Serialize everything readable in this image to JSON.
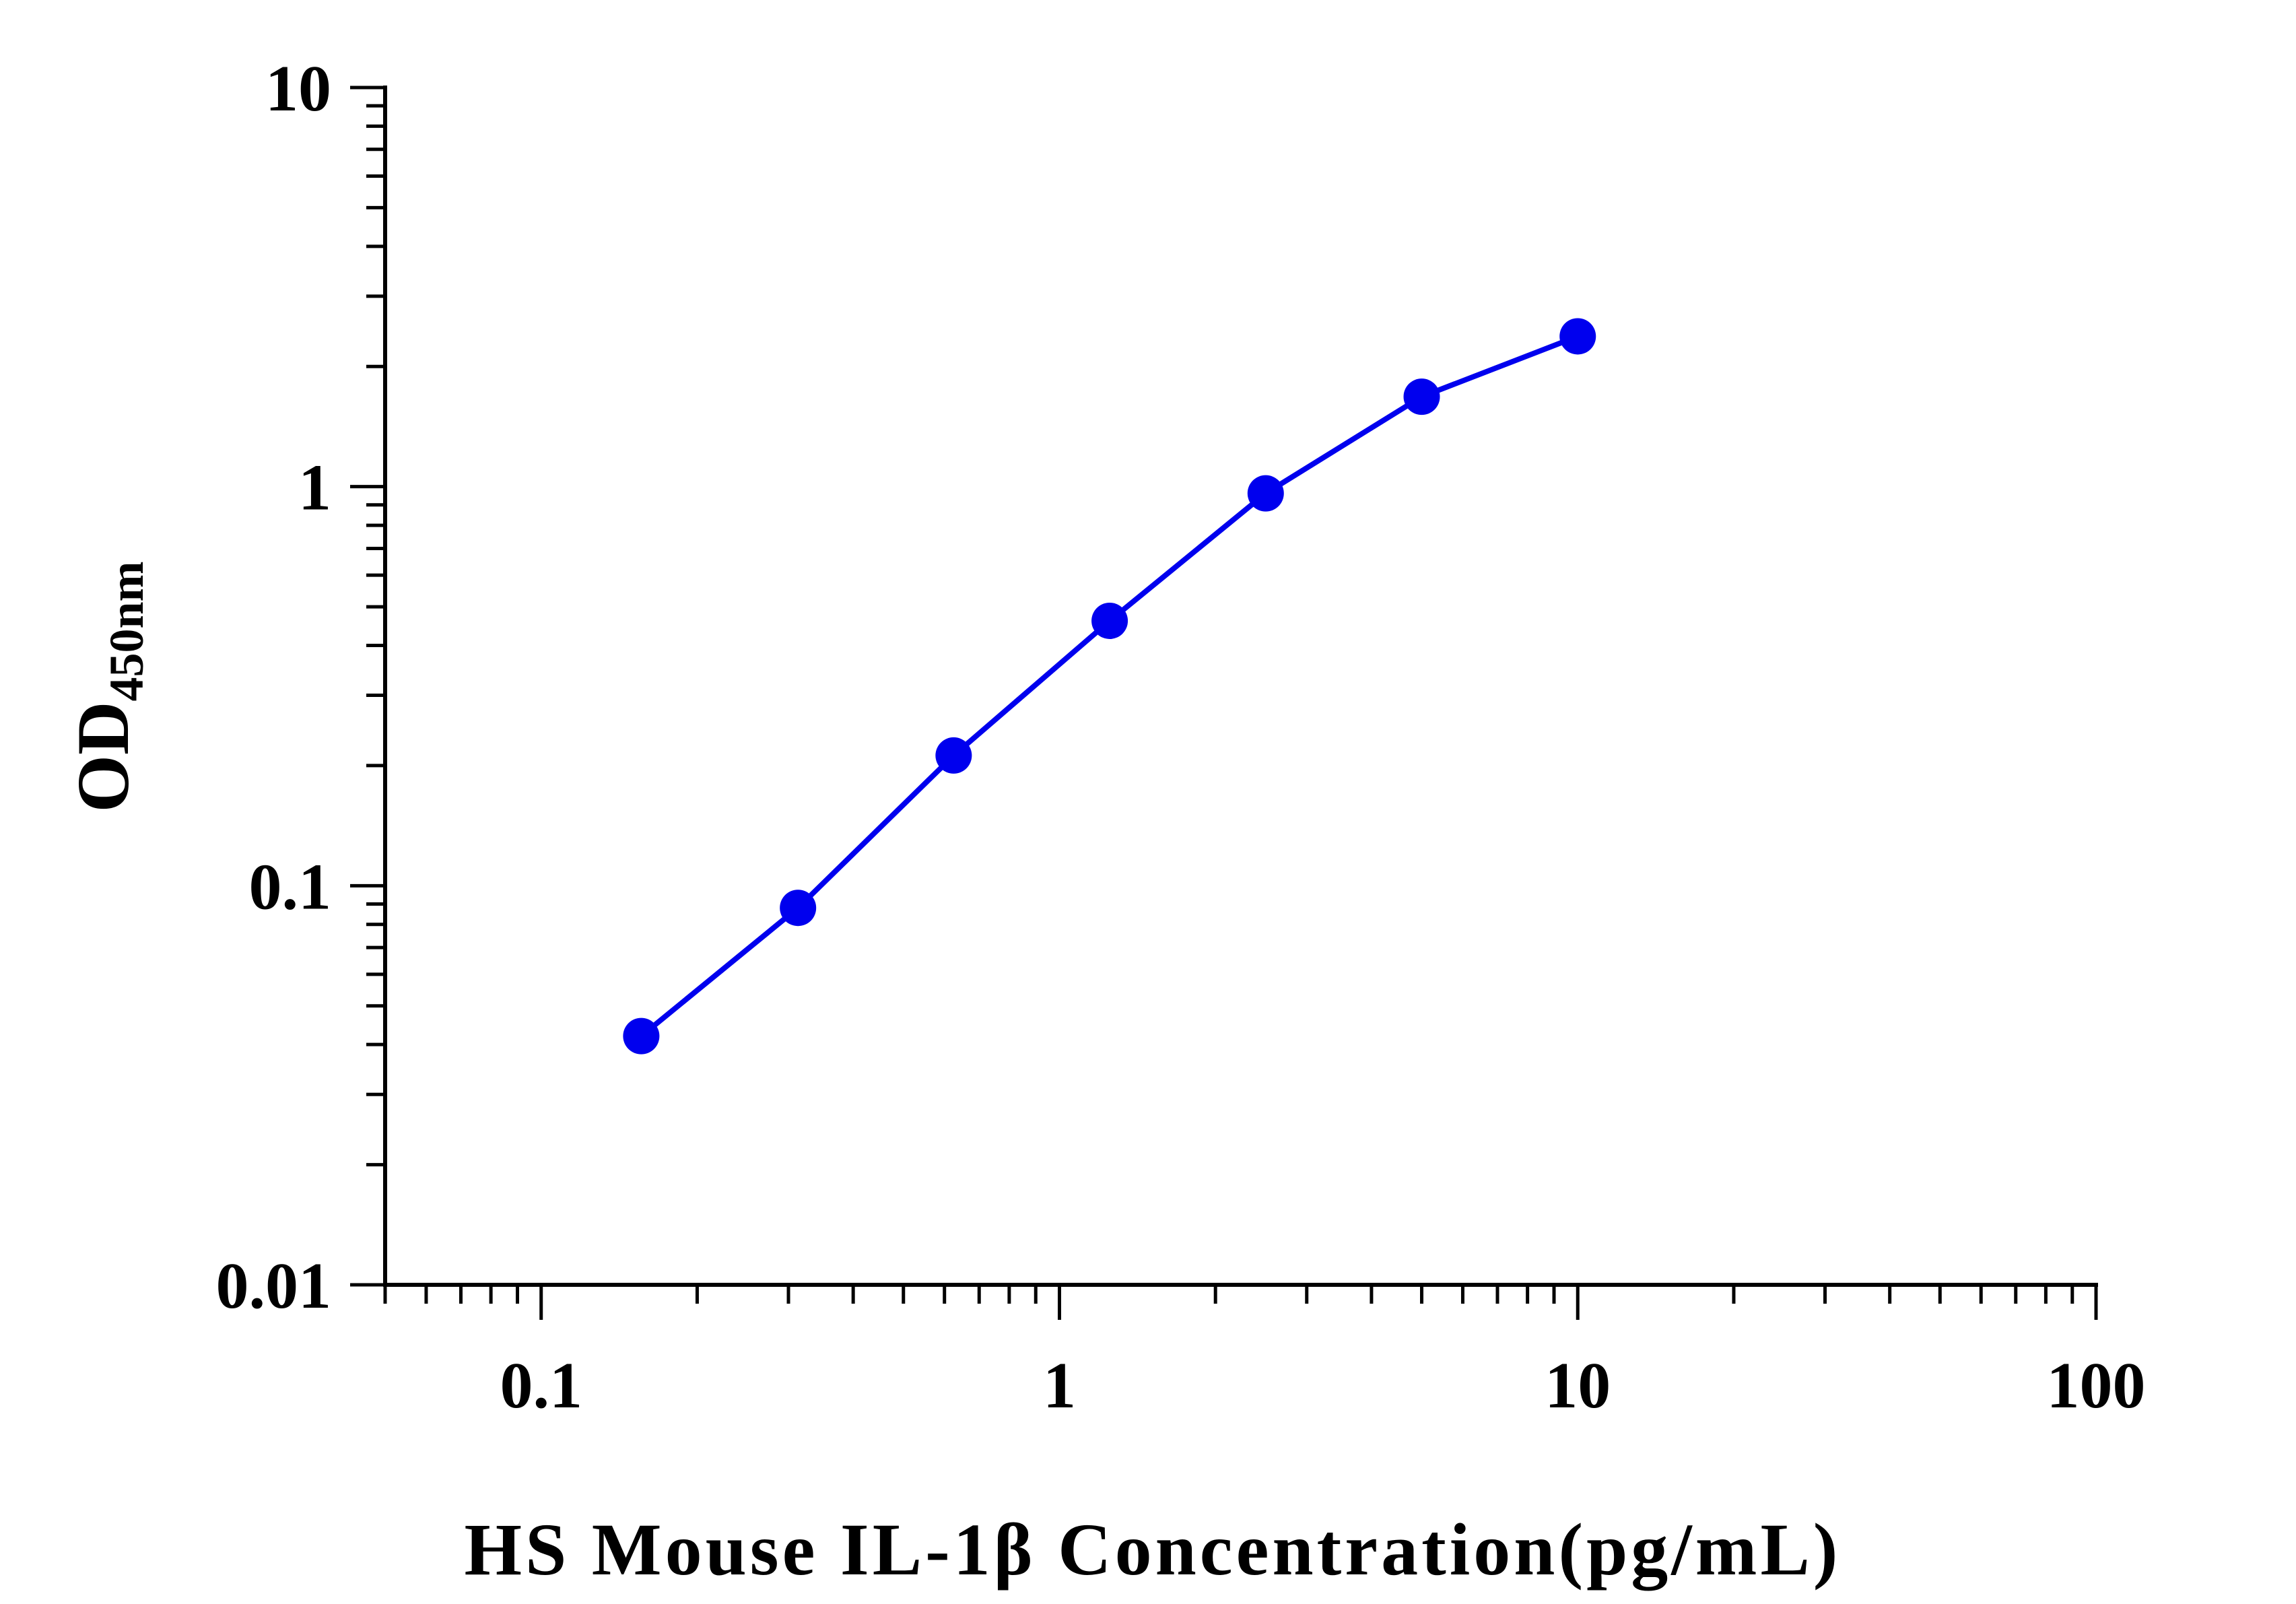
{
  "chart_data": {
    "type": "line",
    "xlabel": "HS Mouse IL-1β Concentration(pg/mL)",
    "ylabel": "OD",
    "ylabel_subscript": "450nm",
    "x_scale": "log",
    "y_scale": "log",
    "xlim": [
      0.05,
      100
    ],
    "ylim": [
      0.01,
      10
    ],
    "x_ticks": [
      0.1,
      1,
      10,
      100
    ],
    "x_tick_labels": [
      "0.1",
      "1",
      "10",
      "100"
    ],
    "y_ticks": [
      0.01,
      0.1,
      1,
      10
    ],
    "y_tick_labels": [
      "0.01",
      "0.1",
      "1",
      "10"
    ],
    "grid": false,
    "series": [
      {
        "color": "#0000ee",
        "marker": "circle",
        "x": [
          0.156,
          0.313,
          0.625,
          1.25,
          2.5,
          5,
          10
        ],
        "y": [
          0.042,
          0.088,
          0.212,
          0.461,
          0.962,
          1.68,
          2.38
        ]
      }
    ]
  }
}
